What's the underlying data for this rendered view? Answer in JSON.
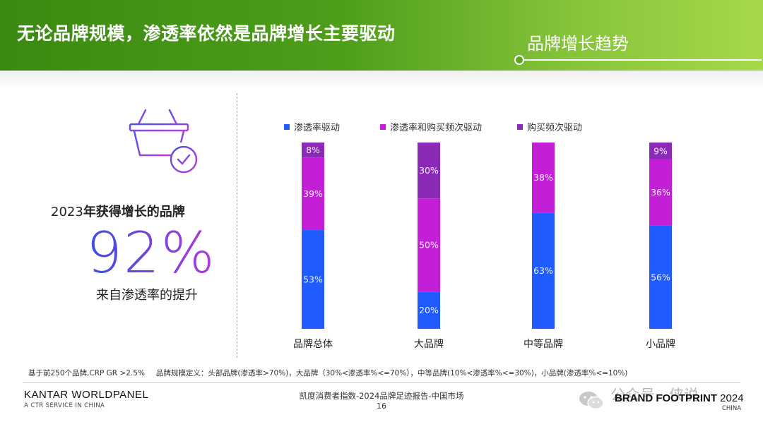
{
  "header": {
    "title": "无论品牌规模，渗透率依然是品牌增长主要驱动",
    "section": "品牌增长趋势"
  },
  "kpi": {
    "label_year": "2023",
    "label_rest": "年获得增长的品牌",
    "value": "92%",
    "sub": "来自渗透率的提升"
  },
  "colors": {
    "penetration": "#1f5bff",
    "penetration_and_frequency": "#c21fd6",
    "frequency": "#8b2ab6"
  },
  "chart_data": {
    "type": "bar",
    "stacked": true,
    "orientation": "vertical",
    "categories": [
      "品牌总体",
      "大品牌",
      "中等品牌",
      "小品牌"
    ],
    "series": [
      {
        "name": "渗透率驱动",
        "values": [
          53,
          20,
          63,
          56
        ],
        "labels": [
          "53%",
          "20%",
          "63%",
          "56%"
        ],
        "color": "#1f5bff"
      },
      {
        "name": "渗透率和购买频次驱动",
        "values": [
          39,
          50,
          38,
          36
        ],
        "labels": [
          "39%",
          "50%",
          "38%",
          "36%"
        ],
        "color": "#c21fd6"
      },
      {
        "name": "购买频次驱动",
        "values": [
          8,
          30,
          0,
          9
        ],
        "labels": [
          "8%",
          "30%",
          "",
          "9%"
        ],
        "color": "#8b2ab6"
      }
    ],
    "ylim": [
      0,
      100
    ],
    "legend": "top",
    "grid": false
  },
  "footnote": {
    "base": "基于前250个品牌,CRP GR >2.5%",
    "definition": "品牌规模定义：头部品牌(渗透率>70%)，大品牌（30%<渗透率%<=70%），中等品牌(10%<渗透率%<=30%)，小品牌(渗透率%<=10%)"
  },
  "footer": {
    "brand": "KANTAR WORLDPANEL",
    "brand_sub": "A CTR SERVICE IN CHINA",
    "source": "凯度消费者指数-2024品牌足迹报告-中国市场",
    "page": "16",
    "watermark": "公众号 · 侠说",
    "logo": "BRAND FOOTPRINT",
    "logo_year": "2024",
    "logo_region": "CHINA"
  }
}
